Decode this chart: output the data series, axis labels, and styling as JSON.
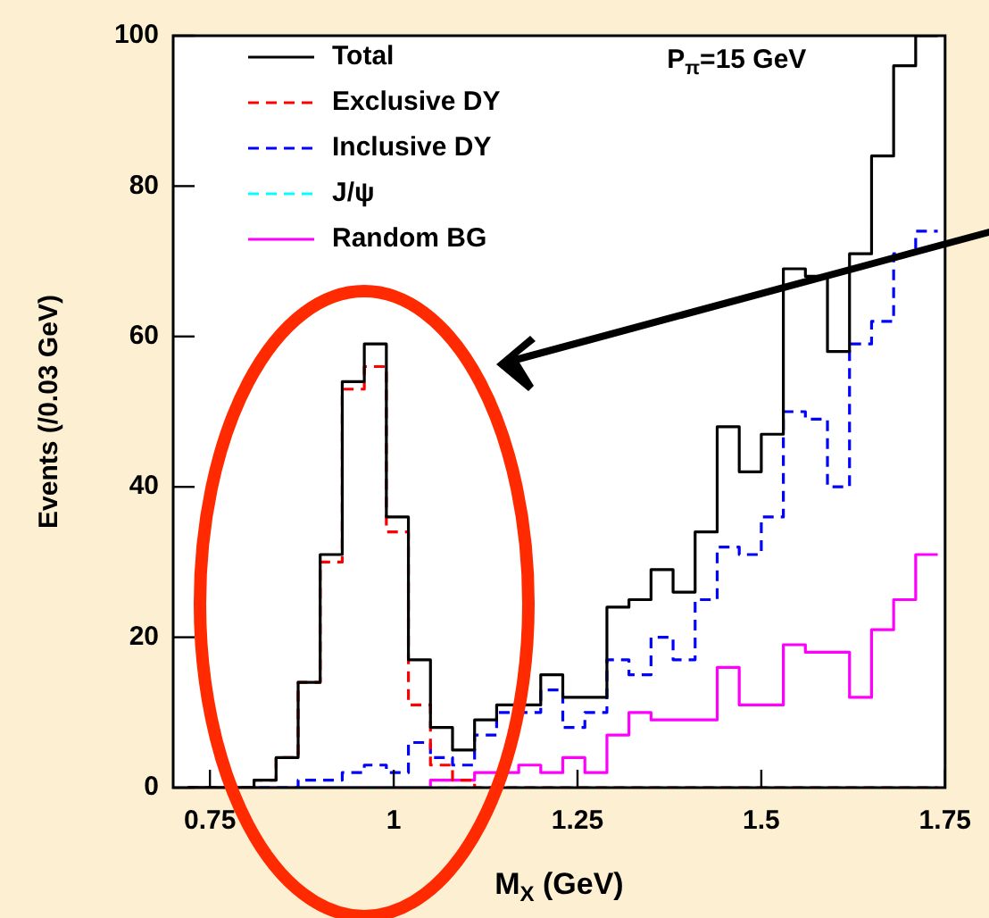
{
  "chart_data": {
    "type": "histogram",
    "xlabel": "M$_{X}$ (GeV)",
    "ylabel": "Events (/0.03 GeV)",
    "annotations": [
      "P$_{π}$=15 GeV"
    ],
    "bins": [
      0.72,
      0.75,
      0.78,
      0.81,
      0.84,
      0.87,
      0.9,
      0.93,
      0.96,
      0.99,
      1.02,
      1.05,
      1.08,
      1.11,
      1.14,
      1.17,
      1.2,
      1.23,
      1.26,
      1.29,
      1.32,
      1.35,
      1.38,
      1.41,
      1.44,
      1.47,
      1.5,
      1.53,
      1.56,
      1.59,
      1.62,
      1.65,
      1.68,
      1.71,
      1.74
    ],
    "series": [
      {
        "name": "Total",
        "color": "#000000",
        "line_style": "solid",
        "values": [
          0,
          0,
          0,
          1,
          4,
          14,
          31,
          54,
          59,
          36,
          17,
          8,
          5,
          9,
          11,
          11,
          15,
          12,
          12,
          24,
          25,
          29,
          26,
          34,
          48,
          42,
          47,
          69,
          68,
          58,
          71,
          84,
          96,
          100
        ]
      },
      {
        "name": "Exclusive DY",
        "color": "#ff0000",
        "line_style": "dashed",
        "values": [
          0,
          0,
          0,
          1,
          4,
          14,
          30,
          53,
          56,
          34,
          11,
          3,
          1,
          0,
          0,
          0,
          0,
          0,
          0,
          0,
          0,
          0,
          0,
          0,
          0,
          0,
          0,
          0,
          0,
          0,
          0,
          0,
          0,
          0
        ]
      },
      {
        "name": "Inclusive DY",
        "color": "#0000ff",
        "line_style": "dashed",
        "values": [
          0,
          0,
          0,
          0,
          0,
          1,
          1,
          2,
          3,
          2,
          6,
          4,
          3,
          7,
          10,
          10,
          13,
          8,
          10,
          17,
          15,
          20,
          17,
          25,
          32,
          31,
          36,
          50,
          49,
          40,
          59,
          62,
          71,
          74
        ]
      },
      {
        "name": "J/ψ",
        "color": "#00ffff",
        "line_style": "dashed",
        "values": [
          0,
          0,
          0,
          0,
          0,
          0,
          0,
          0,
          0,
          0,
          0,
          0,
          0,
          0,
          0,
          0,
          0,
          0,
          0,
          0,
          0,
          0,
          0,
          0,
          0,
          0,
          0,
          0,
          0,
          0,
          0,
          0,
          0,
          0
        ]
      },
      {
        "name": "Random BG",
        "color": "#ff00ff",
        "line_style": "solid",
        "values": [
          0,
          0,
          0,
          0,
          0,
          0,
          0,
          0,
          0,
          0,
          0,
          1,
          1,
          2,
          2,
          3,
          2,
          4,
          2,
          7,
          10,
          9,
          9,
          9,
          16,
          11,
          11,
          19,
          18,
          18,
          12,
          21,
          25,
          31
        ]
      }
    ],
    "xlim": [
      0.7,
      1.75
    ],
    "xticks": [
      0.75,
      1,
      1.25,
      1.5,
      1.75
    ],
    "ylim": [
      0,
      100
    ],
    "yticks": [
      0,
      20,
      40,
      60,
      80,
      100
    ],
    "legend": "top left"
  }
}
